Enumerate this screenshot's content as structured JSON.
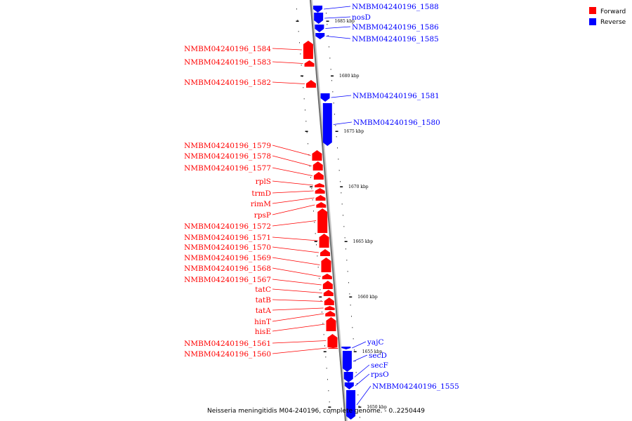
{
  "caption": "Neisseria meningitidis M04-240196, complete genome. - 0..2250449",
  "legend": [
    {
      "label": "Forward",
      "color": "#ff0000"
    },
    {
      "label": "Reverse",
      "color": "#0000ff"
    }
  ],
  "colors": {
    "forward": "#ff0000",
    "reverse": "#0000ff",
    "axis": "#808080"
  },
  "ticks": [
    "1685 kbp",
    "1680 kbp",
    "1675 kbp",
    "1670 kbp",
    "1665 kbp",
    "1660 kbp",
    "1655 kbp",
    "1650 kbp"
  ],
  "forward_genes": [
    "NMBM04240196_1584",
    "NMBM04240196_1583",
    "NMBM04240196_1582",
    "NMBM04240196_1579",
    "NMBM04240196_1578",
    "NMBM04240196_1577",
    "rplS",
    "trmD",
    "rimM",
    "rpsP",
    "NMBM04240196_1572",
    "NMBM04240196_1571",
    "NMBM04240196_1570",
    "NMBM04240196_1569",
    "NMBM04240196_1568",
    "NMBM04240196_1567",
    "tatC",
    "tatB",
    "tatA",
    "hinT",
    "hisE",
    "NMBM04240196_1561",
    "NMBM04240196_1560"
  ],
  "reverse_genes": [
    "NMBM04240196_1588",
    "nosD",
    "NMBM04240196_1586",
    "NMBM04240196_1585",
    "NMBM04240196_1581",
    "NMBM04240196_1580",
    "yajC",
    "secD",
    "secF",
    "rpsO",
    "NMBM04240196_1555"
  ]
}
